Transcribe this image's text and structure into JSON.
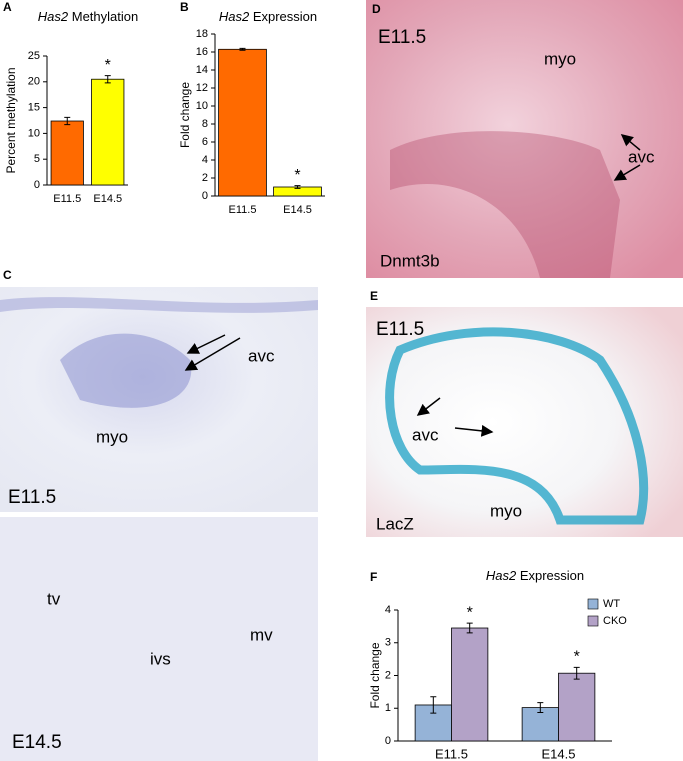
{
  "panel_labels": [
    "A",
    "B",
    "C",
    "D",
    "E",
    "F"
  ],
  "chart_data": [
    {
      "type": "bar",
      "title_gene": "Has2",
      "title": "Methylation",
      "ylabel": "Percent methylation",
      "categories": [
        "E11.5",
        "E14.5"
      ],
      "values": [
        12.4,
        20.5
      ],
      "errors": [
        0.7,
        0.7
      ],
      "colors": [
        "#ff6a00",
        "#ffff00"
      ],
      "value_annotations": [
        null,
        "*"
      ],
      "ylim": [
        0,
        25
      ],
      "yticks": [
        0,
        5,
        10,
        15,
        20,
        25
      ]
    },
    {
      "type": "bar",
      "title_gene": "Has2",
      "title": "Expression",
      "ylabel": "Fold change",
      "categories": [
        "E11.5",
        "E14.5"
      ],
      "values": [
        16.3,
        1.0
      ],
      "errors": [
        0.1,
        0.15
      ],
      "colors": [
        "#ff6a00",
        "#ffff00"
      ],
      "value_annotations": [
        null,
        "*"
      ],
      "ylim": [
        0,
        18
      ],
      "yticks": [
        0,
        2,
        4,
        6,
        8,
        10,
        12,
        14,
        16,
        18
      ]
    },
    {
      "type": "bar",
      "title_gene": "Has2",
      "title": "Expression",
      "ylabel": "Fold change",
      "categories": [
        "E11.5",
        "E14.5"
      ],
      "series": [
        {
          "name": "WT",
          "color": "#95b3d7",
          "values": [
            1.1,
            1.02
          ],
          "errors": [
            0.25,
            0.15
          ],
          "value_annotations": [
            null,
            null
          ]
        },
        {
          "name": "CKO",
          "color": "#b3a2c7",
          "values": [
            3.45,
            2.07
          ],
          "errors": [
            0.15,
            0.18
          ],
          "value_annotations": [
            "*",
            "*"
          ]
        }
      ],
      "ylim": [
        0,
        4
      ],
      "yticks": [
        0,
        1,
        2,
        3,
        4
      ],
      "legend": "upper right"
    }
  ],
  "images": [
    {
      "labels": [
        "avc",
        "myo",
        "E11.5"
      ]
    },
    {
      "labels": [
        "tv",
        "ivs",
        "mv",
        "E14.5"
      ]
    },
    {
      "labels": [
        "E11.5",
        "myo",
        "avc",
        "Dnmt3b"
      ]
    },
    {
      "labels": [
        "E11.5",
        "avc",
        "LacZ",
        "myo"
      ]
    }
  ]
}
